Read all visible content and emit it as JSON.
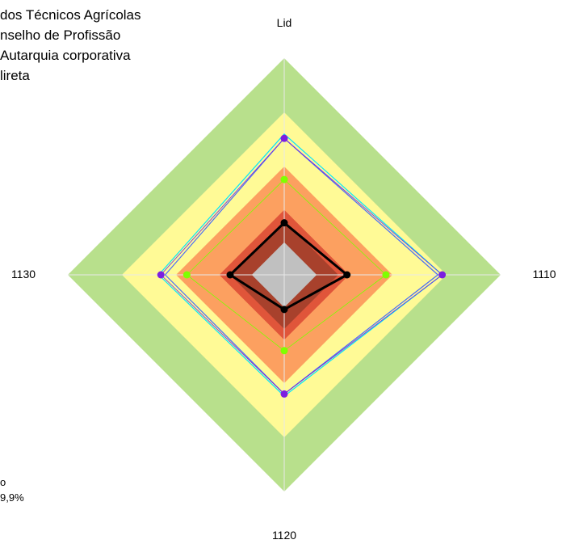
{
  "chart_data": {
    "type": "radar",
    "title_lines": [
      "dos Técnicos Agrícolas",
      "nselho de Profissão",
      " Autarquia corporativa",
      "lireta"
    ],
    "axes": [
      "Lid",
      "1110",
      "1120",
      "1130"
    ],
    "bands": [
      {
        "upper": 1.0,
        "color": "#b8e08c"
      },
      {
        "upper": 0.75,
        "color": "#fffa96"
      },
      {
        "upper": 0.5,
        "color": "#fca060"
      },
      {
        "upper": 0.3,
        "color": "#e0553a"
      },
      {
        "upper": 0.25,
        "color": "#a8412c"
      },
      {
        "upper": 0.15,
        "color": "#c0c0c0"
      }
    ],
    "series": [
      {
        "color": "#00e5ff",
        "dot": false,
        "width": 1.2,
        "values": [
          0.65,
          0.73,
          0.56,
          0.58
        ]
      },
      {
        "color": "#4a6cf7",
        "dot": false,
        "width": 1.2,
        "values": [
          0.63,
          0.71,
          0.55,
          0.55
        ]
      },
      {
        "color": "#7b1fe0",
        "dot": true,
        "width": 0.8,
        "values": [
          0.63,
          0.73,
          0.55,
          0.57
        ]
      },
      {
        "color": "#7fff00",
        "dot": true,
        "width": 0.8,
        "values": [
          0.44,
          0.47,
          0.35,
          0.45
        ]
      },
      {
        "color": "#000000",
        "dot": true,
        "width": 3,
        "values": [
          0.24,
          0.29,
          0.16,
          0.25
        ]
      }
    ],
    "grid": false,
    "legend": "none"
  },
  "notes": [
    "o",
    "9,9%"
  ]
}
